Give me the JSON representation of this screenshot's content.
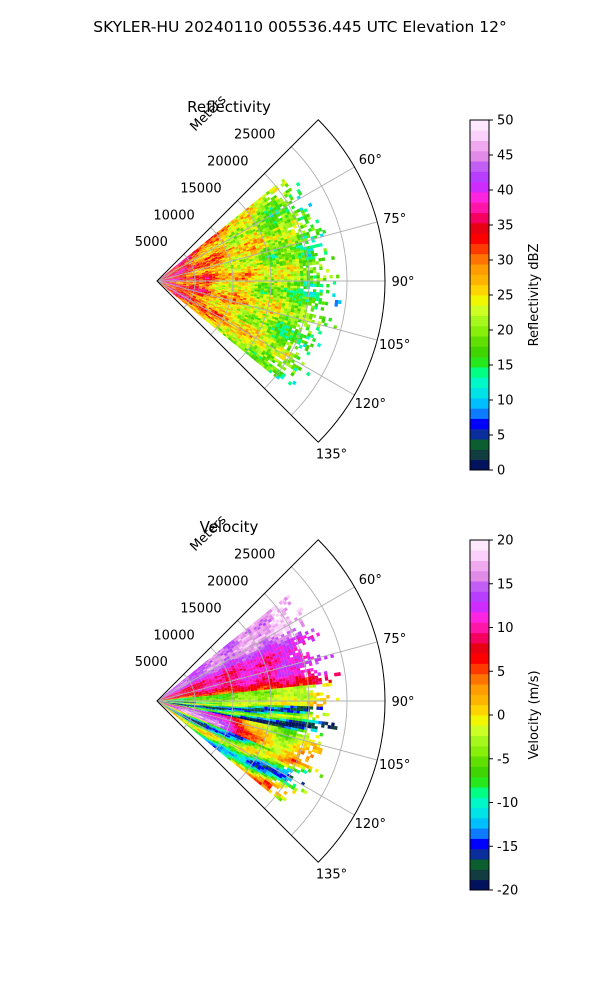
{
  "figure": {
    "title": "SKYLER-HU  20240110  005536.445 UTC Elevation 12°"
  },
  "chart_data": [
    {
      "type": "heatmap",
      "projection": "polar-sector",
      "title": "Reflectivity",
      "radial_label": "Meters",
      "radial_ticks": [
        5000,
        10000,
        15000,
        20000,
        25000
      ],
      "radial_range": [
        0,
        30000
      ],
      "azimuth_range_deg": [
        45,
        135
      ],
      "azimuth_ticks_deg": [
        60,
        75,
        90,
        105,
        120,
        135
      ],
      "azimuth_tick_labels": [
        "60°",
        "75°",
        "90°",
        "105°",
        "120°",
        "135°"
      ],
      "data_sector_deg": [
        51,
        129
      ],
      "grid": true,
      "colorbar": {
        "label": "Reflectivity dBZ",
        "range": [
          0,
          50
        ],
        "ticks": [
          0,
          5,
          10,
          15,
          20,
          25,
          30,
          35,
          40,
          45,
          50
        ],
        "colors": [
          "#03125c",
          "#123d40",
          "#0b5e2f",
          "#0a2f9c",
          "#0000ff",
          "#0c7bff",
          "#00bfff",
          "#00e3e6",
          "#00f7c7",
          "#00ff82",
          "#26e81d",
          "#40d400",
          "#60e000",
          "#88ef0a",
          "#a6f71c",
          "#ccff24",
          "#f1f700",
          "#ffd400",
          "#ffb500",
          "#ff9c00",
          "#ff7300",
          "#ff3a00",
          "#ff0000",
          "#e80012",
          "#f50061",
          "#ff16a9",
          "#ff24e0",
          "#cf2bff",
          "#b83dff",
          "#c25ef5",
          "#e28ae8",
          "#f0a8ef",
          "#fbd0fb",
          "#fde8fd"
        ]
      }
    },
    {
      "type": "heatmap",
      "projection": "polar-sector",
      "title": "Velocity",
      "radial_label": "Meters",
      "radial_ticks": [
        5000,
        10000,
        15000,
        20000,
        25000
      ],
      "radial_range": [
        0,
        30000
      ],
      "azimuth_range_deg": [
        45,
        135
      ],
      "azimuth_ticks_deg": [
        60,
        75,
        90,
        105,
        120,
        135
      ],
      "azimuth_tick_labels": [
        "60°",
        "75°",
        "90°",
        "105°",
        "120°",
        "135°"
      ],
      "data_sector_deg": [
        51,
        129
      ],
      "grid": true,
      "colorbar": {
        "label": "Velocity (m/s)",
        "range": [
          -20,
          20
        ],
        "ticks": [
          -20,
          -15,
          -10,
          -5,
          0,
          5,
          10,
          15,
          20
        ],
        "colors": [
          "#03125c",
          "#123d40",
          "#0b5e2f",
          "#0a2f9c",
          "#0000ff",
          "#0c7bff",
          "#00bfff",
          "#00e3e6",
          "#00f7c7",
          "#00ff82",
          "#26e81d",
          "#40d400",
          "#60e000",
          "#88ef0a",
          "#a6f71c",
          "#ccff24",
          "#f1f700",
          "#ffd400",
          "#ffb500",
          "#ff9c00",
          "#ff7300",
          "#ff3a00",
          "#ff0000",
          "#e80012",
          "#f50061",
          "#ff16a9",
          "#ff24e0",
          "#cf2bff",
          "#b83dff",
          "#c25ef5",
          "#e28ae8",
          "#f0a8ef",
          "#fbd0fb",
          "#fde8fd"
        ]
      }
    }
  ]
}
